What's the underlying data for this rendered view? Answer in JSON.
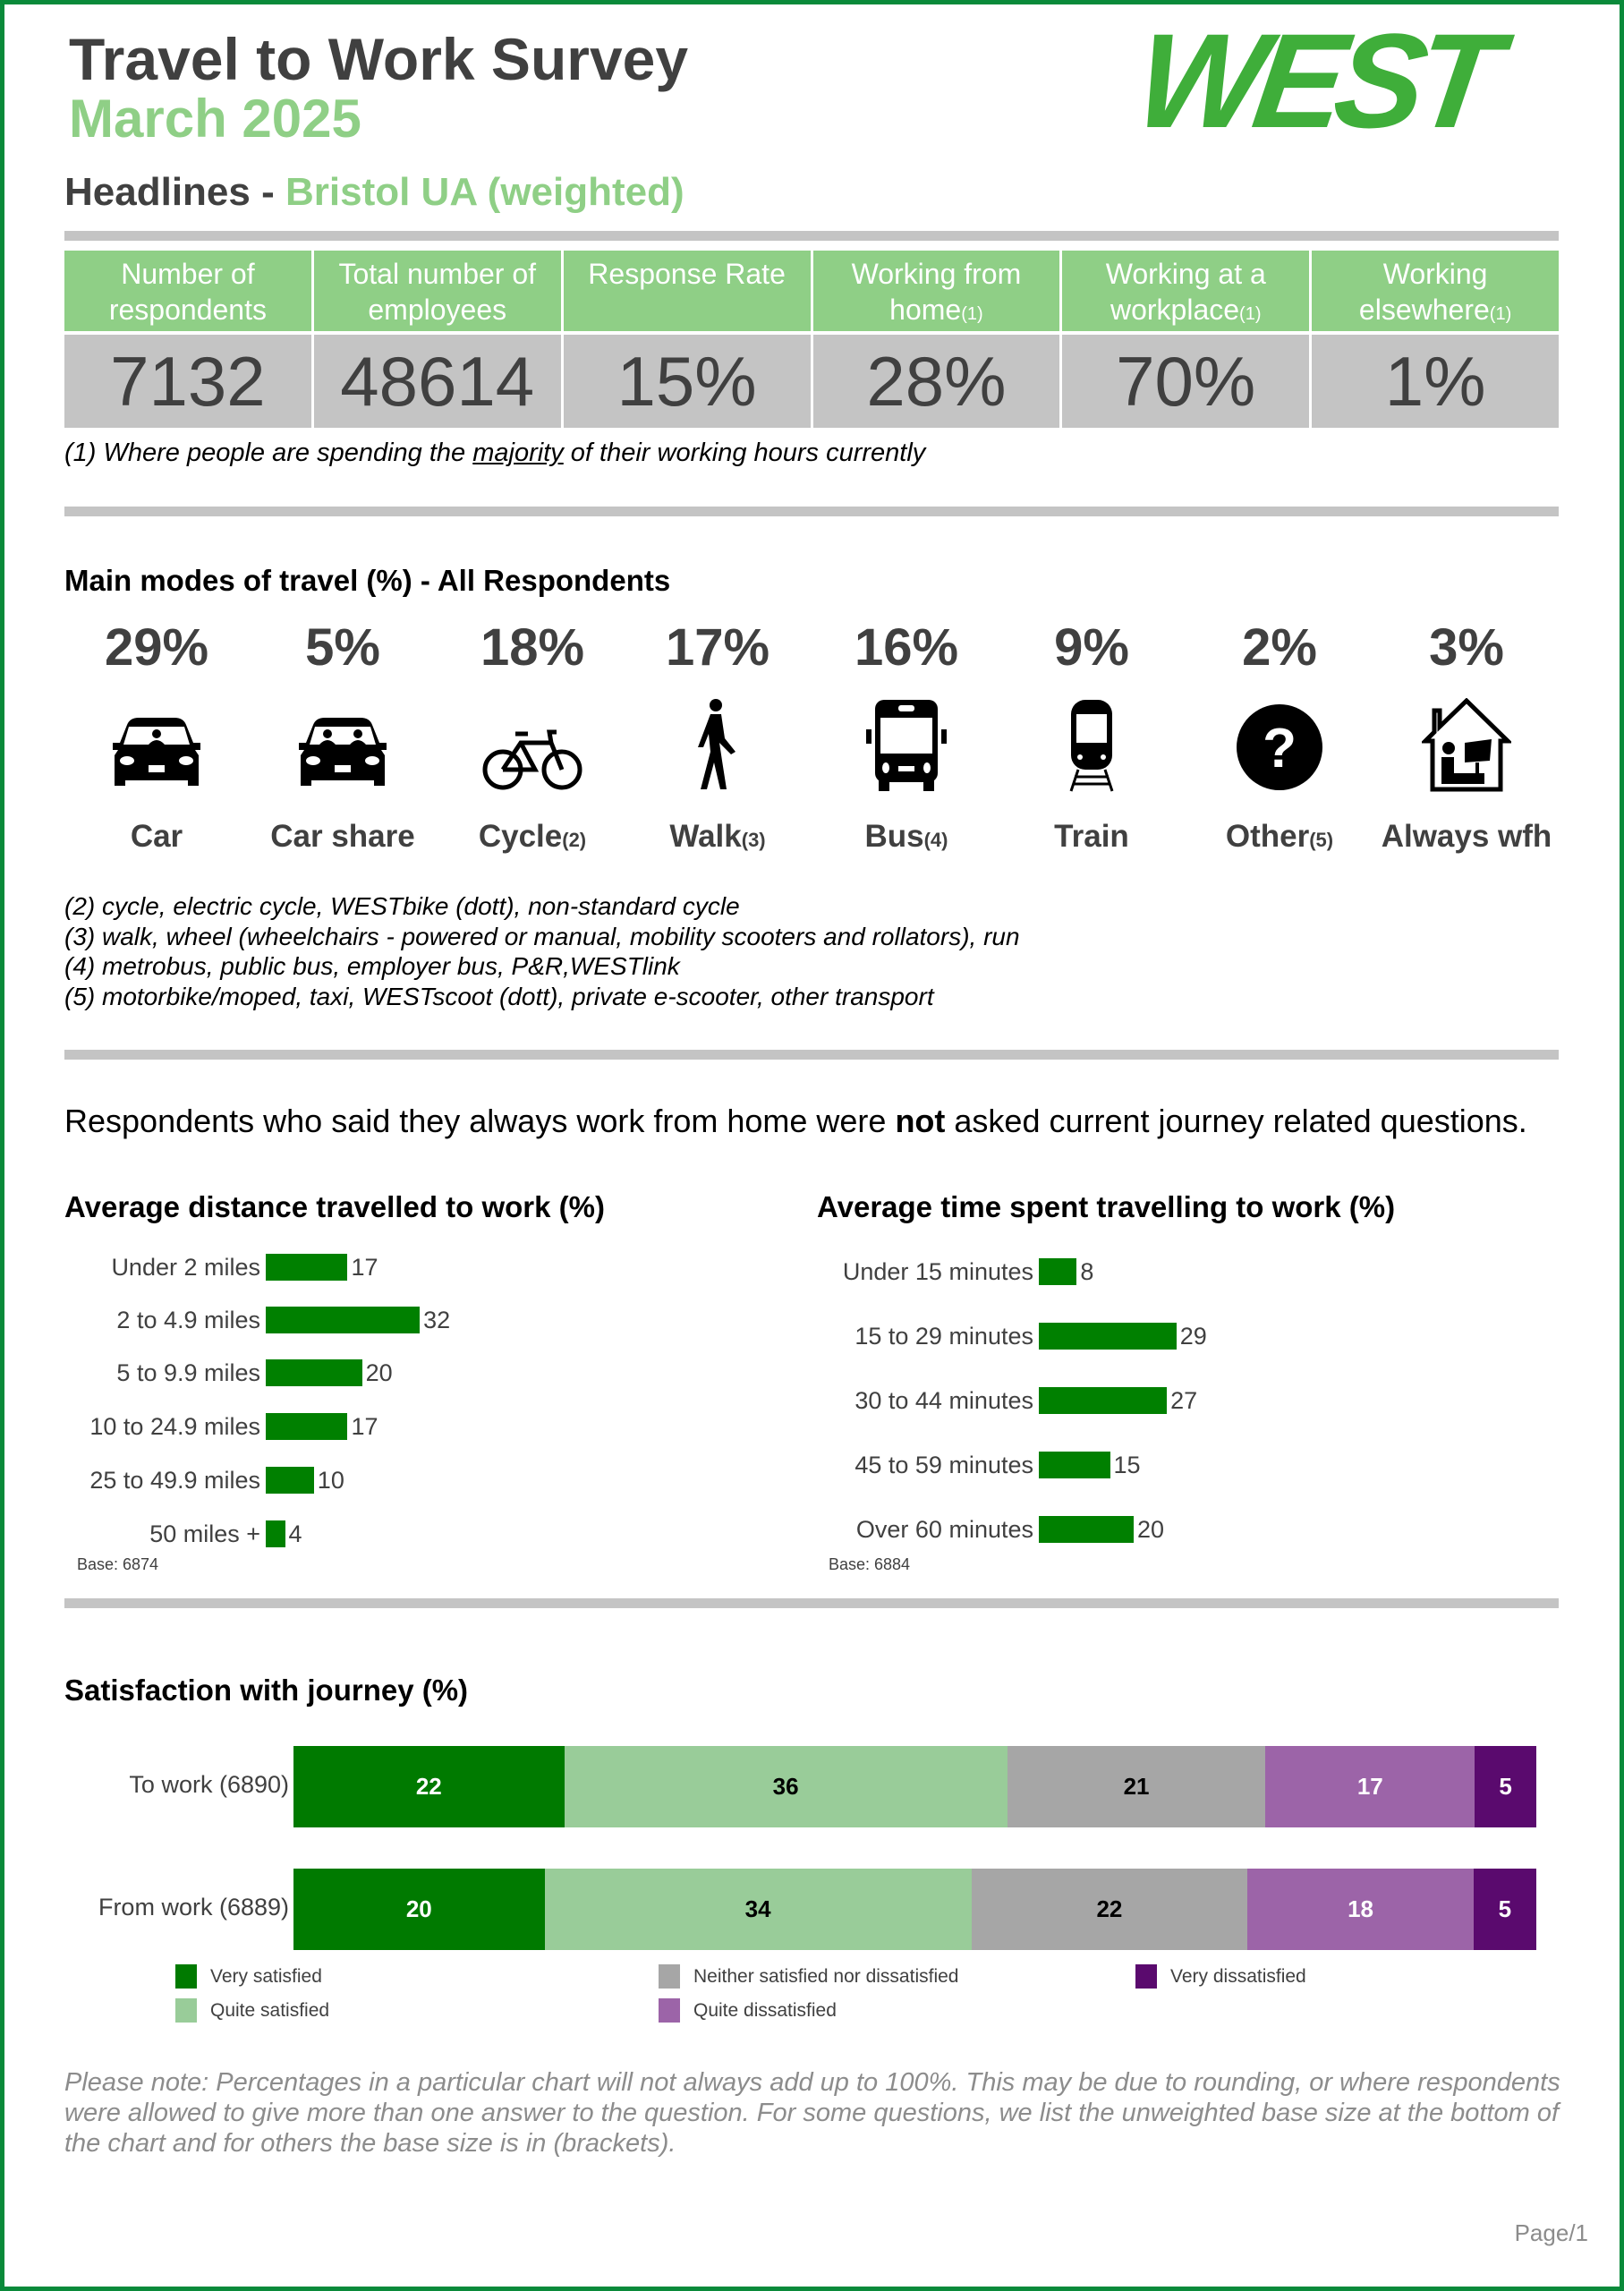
{
  "header": {
    "title": "Travel to Work Survey",
    "subtitle": "March 2025",
    "logo_text": "WEST",
    "colors": {
      "logo": "#3fae3a",
      "accent": "#8fcf86",
      "border": "#0a8a3a"
    }
  },
  "headlines": {
    "prefix": "Headlines - ",
    "area": "Bristol UA  (weighted)"
  },
  "stats": [
    {
      "label": "Number of respondents",
      "note": "",
      "value": "7132"
    },
    {
      "label": "Total number of employees",
      "note": "",
      "value": "48614"
    },
    {
      "label": "Response Rate",
      "note": "",
      "value": "15%"
    },
    {
      "label": "Working from home",
      "note": "(1)",
      "value": "28%"
    },
    {
      "label": "Working at a workplace",
      "note": "(1)",
      "value": "70%"
    },
    {
      "label": "Working elsewhere",
      "note": "(1)",
      "value": "1%"
    }
  ],
  "footnote1": {
    "pre": "(1) Where people are spending the ",
    "u": "majority",
    "post": " of their working hours currently"
  },
  "modes": {
    "title": "Main modes of travel (%) - All Respondents",
    "items": [
      {
        "pct": "29%",
        "label": "Car",
        "note": "",
        "icon": "car-icon"
      },
      {
        "pct": "5%",
        "label": "Car share",
        "note": "",
        "icon": "car-share-icon"
      },
      {
        "pct": "18%",
        "label": "Cycle",
        "note": "(2)",
        "icon": "bicycle-icon"
      },
      {
        "pct": "17%",
        "label": "Walk",
        "note": "(3)",
        "icon": "walking-person-icon"
      },
      {
        "pct": "16%",
        "label": "Bus",
        "note": "(4)",
        "icon": "bus-icon"
      },
      {
        "pct": "9%",
        "label": "Train",
        "note": "",
        "icon": "train-icon"
      },
      {
        "pct": "2%",
        "label": "Other",
        "note": "(5)",
        "icon": "question-mark-icon"
      },
      {
        "pct": "3%",
        "label": "Always wfh",
        "note": "",
        "icon": "home-working-icon"
      }
    ]
  },
  "mode_footnotes": [
    "(2) cycle, electric cycle, WESTbike (dott), non-standard cycle",
    "(3) walk, wheel (wheelchairs - powered or manual, mobility scooters and rollators), run",
    "(4) metrobus, public bus, employer bus, P&R,WESTlink",
    "(5) motorbike/moped, taxi, WESTscoot (dott), private e-scooter, other transport"
  ],
  "statement": {
    "pre": "Respondents who said they always work from home were ",
    "bold": "not",
    "post": " asked current journey related questions."
  },
  "chart_data": [
    {
      "type": "bar",
      "orientation": "horizontal",
      "title": "Average distance travelled to work (%)",
      "categories": [
        "Under 2 miles",
        "2 to 4.9 miles",
        "5 to 9.9 miles",
        "10 to 24.9 miles",
        "25 to 49.9 miles",
        "50 miles +"
      ],
      "values": [
        17,
        32,
        20,
        17,
        10,
        4
      ],
      "base": "Base: 6874",
      "color": "#008000"
    },
    {
      "type": "bar",
      "orientation": "horizontal",
      "title": "Average time spent travelling to work (%)",
      "categories": [
        "Under 15 minutes",
        "15 to 29 minutes",
        "30 to 44 minutes",
        "45 to 59 minutes",
        "Over 60 minutes"
      ],
      "values": [
        8,
        29,
        27,
        15,
        20
      ],
      "base": "Base: 6884",
      "color": "#008000"
    },
    {
      "type": "bar",
      "orientation": "horizontal",
      "stacked": true,
      "title": "Satisfaction with journey (%)",
      "categories": [
        "To work (6890)",
        "From work (6889)"
      ],
      "series": [
        {
          "name": "Very satisfied",
          "values": [
            22,
            20
          ],
          "color": "#007a00",
          "text": "#ffffff"
        },
        {
          "name": "Quite satisfied",
          "values": [
            36,
            34
          ],
          "color": "#99cc99",
          "text": "#000000"
        },
        {
          "name": "Neither satisfied nor dissatisfied",
          "values": [
            21,
            22
          ],
          "color": "#a6a6a6",
          "text": "#000000"
        },
        {
          "name": "Quite dissatisfied",
          "values": [
            17,
            18
          ],
          "color": "#9c64a8",
          "text": "#ffffff"
        },
        {
          "name": "Very dissatisfied",
          "values": [
            5,
            5
          ],
          "color": "#5a0a6e",
          "text": "#ffffff"
        }
      ],
      "legend": "bottom"
    }
  ],
  "note": "Please note: Percentages in a particular chart will not always add up to 100%. This may be due to rounding, or where respondents were allowed to give more than one answer to the question. For some questions, we list the unweighted base size at the bottom of the chart and for others the base size is in (brackets).",
  "page": "Page/1"
}
